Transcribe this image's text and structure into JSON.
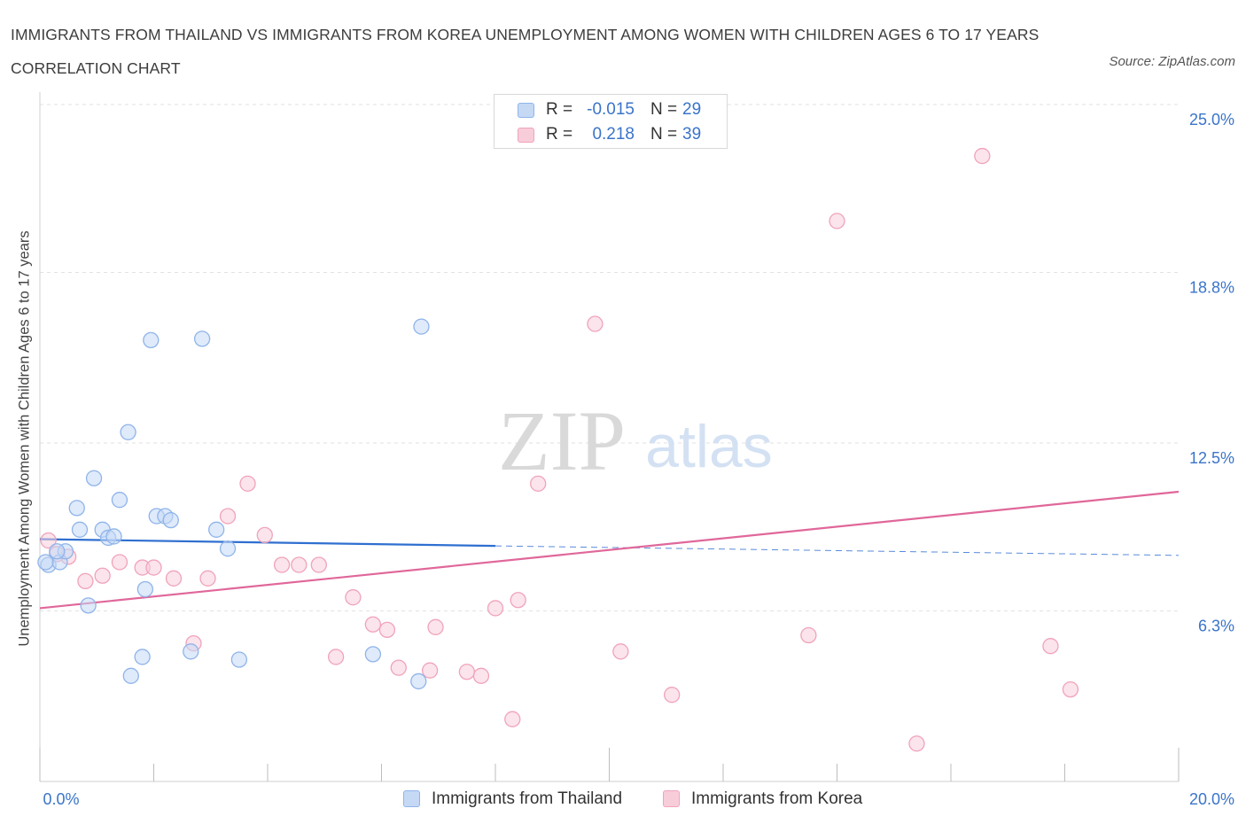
{
  "title": "IMMIGRANTS FROM THAILAND VS IMMIGRANTS FROM KOREA UNEMPLOYMENT AMONG WOMEN WITH CHILDREN AGES 6 TO 17 YEARS CORRELATION CHART",
  "source": "Source: ZipAtlas.com",
  "watermark": {
    "zip": "ZIP",
    "atlas": "atlas"
  },
  "legend_top": {
    "rows": [
      {
        "r_label": "R =",
        "r_value": "-0.015",
        "n_label": "N =",
        "n_value": "29"
      },
      {
        "r_label": "R =",
        "r_value": "0.218",
        "n_label": "N =",
        "n_value": "39"
      }
    ]
  },
  "legend_bottom": {
    "items": [
      "Immigrants from Thailand",
      "Immigrants from Korea"
    ]
  },
  "chart_data": {
    "type": "scatter",
    "title": "IMMIGRANTS FROM THAILAND VS IMMIGRANTS FROM KOREA UNEMPLOYMENT AMONG WOMEN WITH CHILDREN AGES 6 TO 17 YEARS CORRELATION CHART",
    "xlabel": "",
    "ylabel": "Unemployment Among Women with Children Ages 6 to 17 years",
    "xlim": [
      0,
      20
    ],
    "ylim": [
      0,
      25
    ],
    "x_tick_labels": [
      "0.0%",
      "20.0%"
    ],
    "y_tick_values": [
      6.3,
      12.5,
      18.8,
      25.0
    ],
    "y_tick_labels": [
      "6.3%",
      "12.5%",
      "18.8%",
      "25.0%"
    ],
    "grid": true,
    "legend_position": "bottom-center",
    "series": [
      {
        "name": "Immigrants from Thailand",
        "color": "#8fb4ea",
        "fill": "#c5d9f5",
        "line_color": "#2f6fd0",
        "r": -0.015,
        "n": 29,
        "trend": {
          "x": [
            0,
            8.0
          ],
          "y": [
            8.95,
            8.7
          ],
          "dash_to_x": 20,
          "dash_to_y": 8.35
        },
        "points": [
          [
            0.15,
            8.0
          ],
          [
            0.35,
            8.1
          ],
          [
            0.45,
            8.5
          ],
          [
            0.7,
            9.3
          ],
          [
            0.85,
            6.5
          ],
          [
            0.65,
            10.1
          ],
          [
            0.95,
            11.2
          ],
          [
            1.1,
            9.3
          ],
          [
            1.2,
            9.0
          ],
          [
            1.3,
            9.05
          ],
          [
            1.4,
            10.4
          ],
          [
            1.55,
            12.9
          ],
          [
            1.6,
            3.9
          ],
          [
            1.8,
            4.6
          ],
          [
            1.85,
            7.1
          ],
          [
            1.95,
            16.3
          ],
          [
            2.05,
            9.8
          ],
          [
            2.2,
            9.8
          ],
          [
            2.3,
            9.65
          ],
          [
            2.65,
            4.8
          ],
          [
            2.85,
            16.35
          ],
          [
            3.1,
            9.3
          ],
          [
            3.3,
            8.6
          ],
          [
            3.5,
            4.5
          ],
          [
            5.85,
            4.7
          ],
          [
            6.65,
            3.7
          ],
          [
            6.7,
            16.8
          ],
          [
            0.3,
            8.5
          ],
          [
            0.1,
            8.1
          ]
        ]
      },
      {
        "name": "Immigrants from Korea",
        "color": "#f0a3ba",
        "fill": "#f8cdda",
        "line_color": "#e0679a",
        "r": 0.218,
        "n": 39,
        "trend": {
          "x": [
            0,
            20
          ],
          "y": [
            6.4,
            10.7
          ]
        },
        "points": [
          [
            0.15,
            8.9
          ],
          [
            0.3,
            8.4
          ],
          [
            0.5,
            8.3
          ],
          [
            0.8,
            7.4
          ],
          [
            1.1,
            7.6
          ],
          [
            1.4,
            8.1
          ],
          [
            1.8,
            7.9
          ],
          [
            2.0,
            7.9
          ],
          [
            2.35,
            7.5
          ],
          [
            2.7,
            5.1
          ],
          [
            2.95,
            7.5
          ],
          [
            3.3,
            9.8
          ],
          [
            3.65,
            11.0
          ],
          [
            3.95,
            9.1
          ],
          [
            4.25,
            8.0
          ],
          [
            4.55,
            8.0
          ],
          [
            4.9,
            8.0
          ],
          [
            5.2,
            4.6
          ],
          [
            5.5,
            6.8
          ],
          [
            5.85,
            5.8
          ],
          [
            6.1,
            5.6
          ],
          [
            6.3,
            4.2
          ],
          [
            6.85,
            4.1
          ],
          [
            6.95,
            5.7
          ],
          [
            7.5,
            4.05
          ],
          [
            7.75,
            3.9
          ],
          [
            8.0,
            6.4
          ],
          [
            8.3,
            2.3
          ],
          [
            8.4,
            6.7
          ],
          [
            8.75,
            11.0
          ],
          [
            9.75,
            16.9
          ],
          [
            10.2,
            4.8
          ],
          [
            11.1,
            3.2
          ],
          [
            13.5,
            5.4
          ],
          [
            14.0,
            20.7
          ],
          [
            15.4,
            1.4
          ],
          [
            16.55,
            23.1
          ],
          [
            17.75,
            5.0
          ],
          [
            18.1,
            3.4
          ]
        ]
      }
    ]
  }
}
